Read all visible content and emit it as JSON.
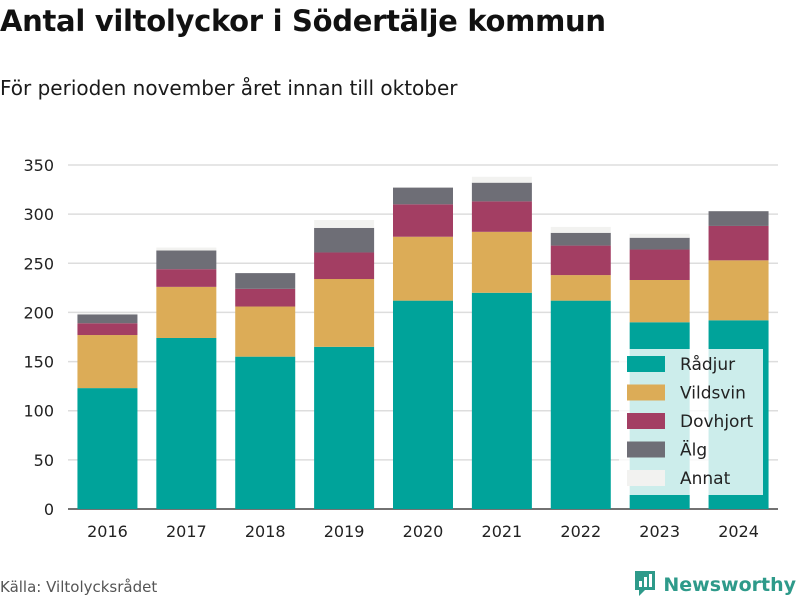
{
  "chart_data": {
    "type": "bar",
    "stacked": true,
    "title": "Antal viltolyckor i Södertälje kommun",
    "subtitle": "För perioden november året innan till oktober",
    "categories": [
      "2016",
      "2017",
      "2018",
      "2019",
      "2020",
      "2021",
      "2022",
      "2023",
      "2024"
    ],
    "series": [
      {
        "name": "Rådjur",
        "color": "#00a39a",
        "values": [
          123,
          174,
          155,
          165,
          212,
          220,
          212,
          190,
          192
        ]
      },
      {
        "name": "Vildsvin",
        "color": "#dcac57",
        "values": [
          54,
          52,
          51,
          69,
          65,
          62,
          26,
          43,
          61
        ]
      },
      {
        "name": "Dovhjort",
        "color": "#a33e63",
        "values": [
          12,
          18,
          18,
          27,
          33,
          31,
          30,
          31,
          35
        ]
      },
      {
        "name": "Älg",
        "color": "#6e6e76",
        "values": [
          9,
          19,
          16,
          25,
          17,
          19,
          13,
          12,
          15
        ]
      },
      {
        "name": "Annat",
        "color": "#f2f2f0",
        "values": [
          1,
          3,
          0,
          8,
          0,
          6,
          6,
          4,
          0
        ]
      }
    ],
    "yticks": [
      0,
      50,
      100,
      150,
      200,
      250,
      300,
      350
    ],
    "ylim": [
      0,
      350
    ],
    "grid": true,
    "legend_position": "bottom-right"
  },
  "footer": {
    "source": "Källa: Viltolycksrådet",
    "brand": "Newsworthy"
  }
}
